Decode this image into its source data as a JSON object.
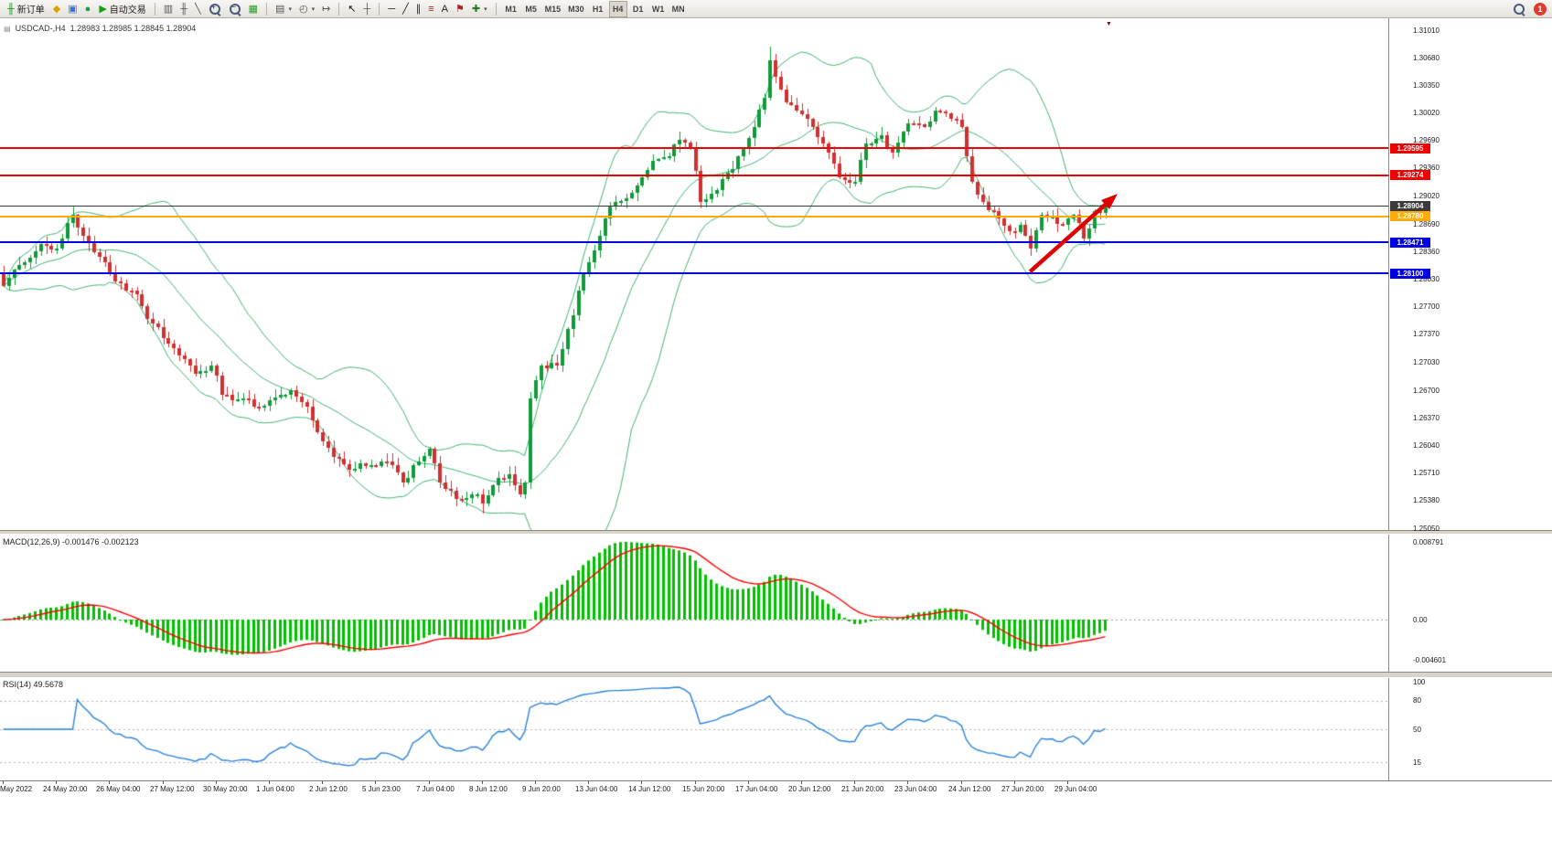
{
  "toolbar": {
    "new_order_label": "新订单",
    "auto_trading_label": "自动交易",
    "icon_buttons_a": [
      {
        "name": "metaeditor",
        "glyph": "diamond"
      },
      {
        "name": "chart-window",
        "glyph": "window"
      },
      {
        "name": "community",
        "glyph": "globe"
      }
    ],
    "icon_buttons_b": [
      {
        "name": "bar-chart",
        "glyph": "bars"
      },
      {
        "name": "candlestick-chart",
        "glyph": "candle"
      },
      {
        "name": "line-chart",
        "glyph": "line"
      },
      {
        "name": "zoom-in",
        "glyph": "zoom-in"
      },
      {
        "name": "zoom-out",
        "glyph": "zoom-out"
      },
      {
        "name": "tile-windows",
        "glyph": "grid"
      }
    ],
    "icon_buttons_c": [
      {
        "name": "templates",
        "glyph": "template",
        "dropdown": true
      },
      {
        "name": "period-selector",
        "glyph": "clock",
        "dropdown": true
      },
      {
        "name": "chart-shift",
        "glyph": "shift"
      }
    ],
    "icon_buttons_d": [
      {
        "name": "cursor",
        "glyph": "cursor"
      },
      {
        "name": "crosshair",
        "glyph": "crosshair"
      }
    ],
    "icon_buttons_e": [
      {
        "name": "horizontal-line",
        "glyph": "hline"
      },
      {
        "name": "trendline",
        "glyph": "tline"
      },
      {
        "name": "channel",
        "glyph": "channel"
      },
      {
        "name": "fibonacci",
        "glyph": "fibo"
      },
      {
        "name": "text",
        "glyph": "text"
      },
      {
        "name": "label",
        "glyph": "flag"
      },
      {
        "name": "shapes",
        "glyph": "shapes",
        "dropdown": true
      }
    ],
    "timeframes": [
      "M1",
      "M5",
      "M15",
      "M30",
      "H1",
      "H4",
      "D1",
      "W1",
      "MN"
    ],
    "active_timeframe": "H4",
    "notification_count": "1"
  },
  "chart": {
    "symbol_label": "USDCAD-,H4",
    "ohlc": "1.28983 1.28985 1.28845 1.28904",
    "price_ticks": [
      "1.31010",
      "1.30680",
      "1.30350",
      "1.30020",
      "1.29690",
      "1.29360",
      "1.29020",
      "1.28690",
      "1.28360",
      "1.28030",
      "1.27700",
      "1.27370",
      "1.27030",
      "1.26700",
      "1.26370",
      "1.26040",
      "1.25710",
      "1.25380",
      "1.25050"
    ],
    "time_ticks": [
      "May 2022",
      "24 May 20:00",
      "26 May 04:00",
      "27 May 12:00",
      "30 May 20:00",
      "1 Jun 04:00",
      "2 Jun 12:00",
      "5 Jun 23:00",
      "7 Jun 04:00",
      "8 Jun 12:00",
      "9 Jun 20:00",
      "13 Jun 04:00",
      "14 Jun 12:00",
      "15 Jun 20:00",
      "17 Jun 04:00",
      "20 Jun 12:00",
      "21 Jun 20:00",
      "23 Jun 04:00",
      "24 Jun 12:00",
      "27 Jun 20:00",
      "29 Jun 04:00"
    ],
    "hlines": [
      {
        "price": 1.29595,
        "label": "1.29595",
        "color": "#f00000",
        "thickness": 2
      },
      {
        "price": 1.29274,
        "label": "1.29274",
        "color": "#f00000",
        "thickness": 2
      },
      {
        "price": 1.2878,
        "label": "1.28780",
        "color": "#ffaa00",
        "thickness": 2
      },
      {
        "price": 1.28904,
        "label": "1.28904",
        "color": "#3a3a3a",
        "thickness": 1
      },
      {
        "price": 1.28471,
        "label": "1.28471",
        "color": "#0000e0",
        "thickness": 2
      },
      {
        "price": 1.281,
        "label": "1.28100",
        "color": "#0000e0",
        "thickness": 2
      }
    ],
    "colors": {
      "up": "#119a3a",
      "down": "#d03030",
      "bollinger": "#3cb371",
      "macd_hist": "#00c000",
      "macd_signal": "#ff0000",
      "rsi": "#2a82da",
      "arrow": "#e00000"
    }
  },
  "macd": {
    "label": "MACD(12,26,9) -0.001476 -0.002123",
    "axis": [
      "0.008791",
      "0.00",
      "-0.004601"
    ]
  },
  "rsi": {
    "label": "RSI(14) 49.5678",
    "levels": [
      "100",
      "80",
      "50",
      "15"
    ]
  },
  "chart_data": {
    "type": "candlestick",
    "symbol": "USDCAD",
    "timeframe": "H4",
    "candle_count": 208,
    "last_close": 1.28904,
    "session_high": 1.3081,
    "session_low": 1.2523,
    "price_range": {
      "max": 1.3101,
      "min": 1.2505
    },
    "indicators": {
      "bollinger": {
        "period": 20,
        "deviation": 2
      },
      "macd": {
        "fast": 12,
        "slow": 26,
        "signal": 9,
        "current": -0.001476,
        "signal_current": -0.002123
      },
      "rsi": {
        "period": 14,
        "current": 49.5678
      }
    },
    "trend_arrow": {
      "from": [
        193,
        1.2812
      ],
      "to": [
        208,
        1.2897
      ]
    },
    "close_anchors": [
      [
        0,
        1.2795
      ],
      [
        3,
        1.282
      ],
      [
        7,
        1.2845
      ],
      [
        10,
        1.284
      ],
      [
        13,
        1.288
      ],
      [
        15,
        1.2855
      ],
      [
        18,
        1.283
      ],
      [
        21,
        1.28
      ],
      [
        25,
        1.2785
      ],
      [
        27,
        1.2755
      ],
      [
        32,
        1.272
      ],
      [
        36,
        1.269
      ],
      [
        39,
        1.27
      ],
      [
        41,
        1.2665
      ],
      [
        45,
        1.266
      ],
      [
        48,
        1.265
      ],
      [
        52,
        1.2665
      ],
      [
        54,
        1.267
      ],
      [
        57,
        1.265
      ],
      [
        59,
        1.262
      ],
      [
        62,
        1.259
      ],
      [
        65,
        1.2575
      ],
      [
        69,
        1.258
      ],
      [
        72,
        1.2585
      ],
      [
        75,
        1.256
      ],
      [
        77,
        1.258
      ],
      [
        80,
        1.26
      ],
      [
        82,
        1.256
      ],
      [
        85,
        1.254
      ],
      [
        88,
        1.2545
      ],
      [
        90,
        1.2535
      ],
      [
        93,
        1.2565
      ],
      [
        95,
        1.257
      ],
      [
        97,
        1.2545
      ],
      [
        98,
        1.256
      ],
      [
        99,
        1.266
      ],
      [
        101,
        1.27
      ],
      [
        104,
        1.27
      ],
      [
        107,
        1.276
      ],
      [
        109,
        1.281
      ],
      [
        112,
        1.2855
      ],
      [
        114,
        1.289
      ],
      [
        117,
        1.29
      ],
      [
        119,
        1.2915
      ],
      [
        122,
        1.2945
      ],
      [
        125,
        1.295
      ],
      [
        127,
        1.297
      ],
      [
        129,
        1.296
      ],
      [
        131,
        1.2895
      ],
      [
        134,
        1.291
      ],
      [
        136,
        1.293
      ],
      [
        138,
        1.295
      ],
      [
        141,
        1.2985
      ],
      [
        143,
        1.302
      ],
      [
        144,
        1.3065
      ],
      [
        146,
        1.303
      ],
      [
        147,
        1.3015
      ],
      [
        150,
        1.3
      ],
      [
        152,
        1.2985
      ],
      [
        155,
        1.2955
      ],
      [
        157,
        1.2925
      ],
      [
        160,
        1.292
      ],
      [
        162,
        1.2965
      ],
      [
        165,
        1.2975
      ],
      [
        167,
        1.2955
      ],
      [
        170,
        1.299
      ],
      [
        173,
        1.2985
      ],
      [
        175,
        1.3005
      ],
      [
        178,
        1.2995
      ],
      [
        180,
        1.2985
      ],
      [
        182,
        1.292
      ],
      [
        184,
        1.2895
      ],
      [
        186,
        1.2885
      ],
      [
        189,
        1.286
      ],
      [
        191,
        1.2868
      ],
      [
        193,
        1.284
      ],
      [
        195,
        1.288
      ],
      [
        197,
        1.2878
      ],
      [
        199,
        1.2868
      ],
      [
        201,
        1.288
      ],
      [
        203,
        1.2852
      ],
      [
        205,
        1.2885
      ],
      [
        207,
        1.28904
      ]
    ]
  }
}
